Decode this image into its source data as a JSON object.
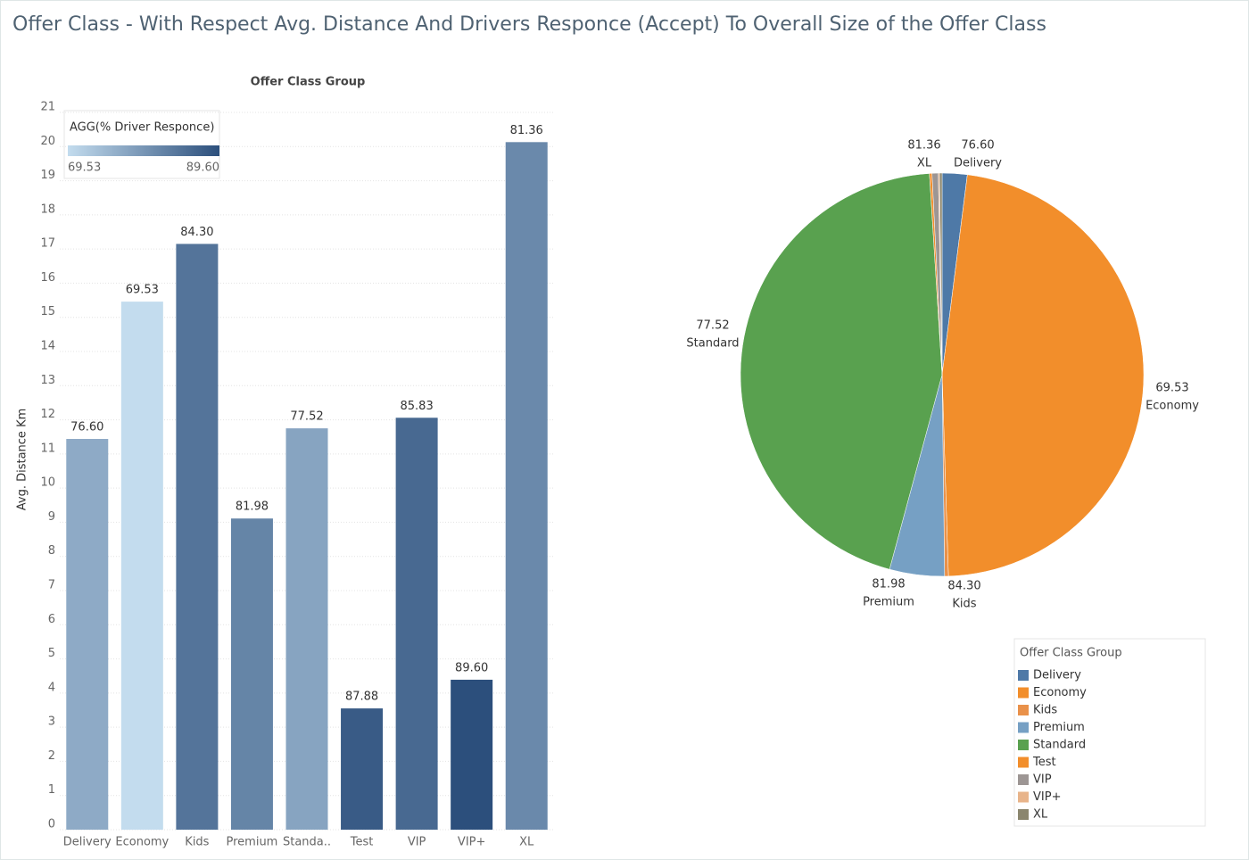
{
  "title": "Offer Class - With Respect Avg. Distance  And Drivers Responce (Accept) To Overall Size of the Offer Class",
  "chart_data": [
    {
      "type": "bar",
      "header": "Offer Class Group",
      "y_label": "Avg. Distance Km",
      "categories": [
        "Delivery",
        "Economy",
        "Kids",
        "Premium",
        "Standa..",
        "Test",
        "VIP",
        "VIP+",
        "XL"
      ],
      "values": [
        11.44,
        15.46,
        17.15,
        9.11,
        11.75,
        3.55,
        12.06,
        4.39,
        20.13
      ],
      "response": {
        "values": [
          76.6,
          69.53,
          84.3,
          81.98,
          77.52,
          87.88,
          85.83,
          89.6,
          81.36
        ],
        "value_labels": [
          "76.60",
          "69.53",
          "84.30",
          "81.98",
          "77.52",
          "87.88",
          "85.83",
          "89.60",
          "81.36"
        ]
      },
      "color_legend": {
        "title": "AGG(% Driver Responce)",
        "range": [
          {
            "value": 69.53,
            "label": "69.53"
          },
          {
            "value": 89.6,
            "label": "89.60"
          }
        ],
        "colors": [
          "#c3dcee",
          "#2c4f7c"
        ]
      },
      "ylim": [
        0,
        21
      ],
      "yticks": [
        0,
        1,
        2,
        3,
        4,
        5,
        6,
        7,
        8,
        9,
        10,
        11,
        12,
        13,
        14,
        15,
        16,
        17,
        18,
        19,
        20,
        21
      ],
      "grid": true
    },
    {
      "type": "pie",
      "legend_title": "Offer Class Group",
      "categories": [
        "Delivery",
        "Economy",
        "Kids",
        "Premium",
        "Standard",
        "Test",
        "VIP",
        "VIP+",
        "XL"
      ],
      "values": [
        2,
        47.5,
        0.3,
        4.4,
        44.8,
        0.2,
        0.5,
        0.1,
        0.2
      ],
      "colors": [
        "#4e79a7",
        "#f28e2b",
        "#e9914a",
        "#76a0c4",
        "#59a14f",
        "#f28e2b",
        "#9d9694",
        "#e8b48a",
        "#8b866e"
      ],
      "response_labels": [
        "76.60",
        "69.53",
        "84.30",
        "81.98",
        "77.52",
        null,
        null,
        null,
        "81.36"
      ],
      "legend": "bottom-right"
    }
  ]
}
